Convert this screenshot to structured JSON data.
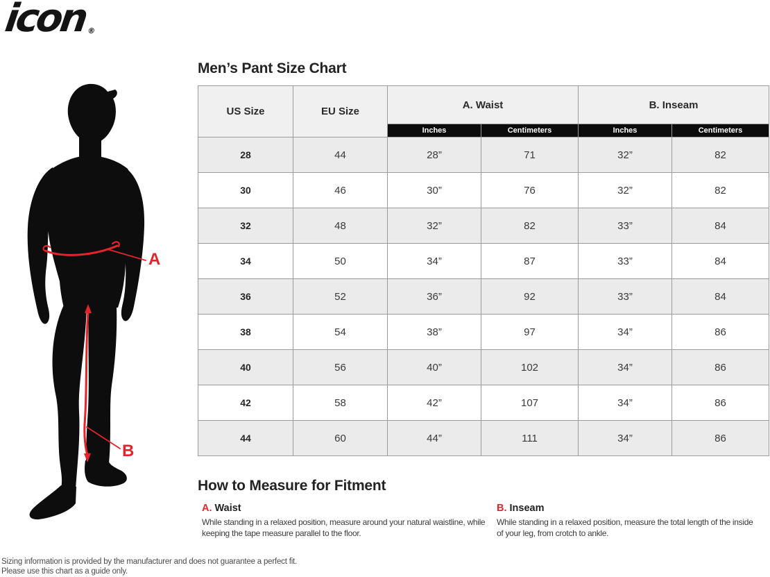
{
  "brand": {
    "logo_text": "icon",
    "registered_mark": "®"
  },
  "diagram": {
    "label_a": "A",
    "label_b": "B"
  },
  "table": {
    "title": "Men’s Pant Size Chart",
    "headers": {
      "us": "US Size",
      "eu": "EU Size",
      "waist": "A. Waist",
      "inseam": "B. Inseam",
      "inches": "Inches",
      "centimeters": "Centimeters"
    },
    "rows": [
      {
        "us": "28",
        "eu": "44",
        "waist_in": "28”",
        "waist_cm": "71",
        "inseam_in": "32”",
        "inseam_cm": "82"
      },
      {
        "us": "30",
        "eu": "46",
        "waist_in": "30”",
        "waist_cm": "76",
        "inseam_in": "32”",
        "inseam_cm": "82"
      },
      {
        "us": "32",
        "eu": "48",
        "waist_in": "32”",
        "waist_cm": "82",
        "inseam_in": "33”",
        "inseam_cm": "84"
      },
      {
        "us": "34",
        "eu": "50",
        "waist_in": "34”",
        "waist_cm": "87",
        "inseam_in": "33”",
        "inseam_cm": "84"
      },
      {
        "us": "36",
        "eu": "52",
        "waist_in": "36”",
        "waist_cm": "92",
        "inseam_in": "33”",
        "inseam_cm": "84"
      },
      {
        "us": "38",
        "eu": "54",
        "waist_in": "38”",
        "waist_cm": "97",
        "inseam_in": "34”",
        "inseam_cm": "86"
      },
      {
        "us": "40",
        "eu": "56",
        "waist_in": "40”",
        "waist_cm": "102",
        "inseam_in": "34”",
        "inseam_cm": "86"
      },
      {
        "us": "42",
        "eu": "58",
        "waist_in": "42”",
        "waist_cm": "107",
        "inseam_in": "34”",
        "inseam_cm": "86"
      },
      {
        "us": "44",
        "eu": "60",
        "waist_in": "44”",
        "waist_cm": "111",
        "inseam_in": "34”",
        "inseam_cm": "86"
      }
    ]
  },
  "chart_data": {
    "type": "table",
    "title": "Men’s Pant Size Chart",
    "columns": [
      "US Size",
      "EU Size",
      "A. Waist Inches",
      "A. Waist Centimeters",
      "B. Inseam Inches",
      "B. Inseam Centimeters"
    ],
    "rows": [
      [
        "28",
        "44",
        "28”",
        "71",
        "32”",
        "82"
      ],
      [
        "30",
        "46",
        "30”",
        "76",
        "32”",
        "82"
      ],
      [
        "32",
        "48",
        "32”",
        "82",
        "33”",
        "84"
      ],
      [
        "34",
        "50",
        "34”",
        "87",
        "33”",
        "84"
      ],
      [
        "36",
        "52",
        "36”",
        "92",
        "33”",
        "84"
      ],
      [
        "38",
        "54",
        "38”",
        "97",
        "34”",
        "86"
      ],
      [
        "40",
        "56",
        "40”",
        "102",
        "34”",
        "86"
      ],
      [
        "42",
        "58",
        "42”",
        "107",
        "34”",
        "86"
      ],
      [
        "44",
        "60",
        "44”",
        "111",
        "34”",
        "86"
      ]
    ]
  },
  "how_to_measure": {
    "title": "How to Measure for Fitment",
    "sections": [
      {
        "letter": "A.",
        "name": "Waist",
        "text": "While standing in a relaxed position, measure around your natural waistline, while keeping the tape measure parallel to the floor."
      },
      {
        "letter": "B.",
        "name": "Inseam",
        "text": "While standing in a relaxed position, measure the total length of the inside of your leg, from crotch to ankle."
      }
    ]
  },
  "disclaimer": {
    "line1": "Sizing information is provided by the manufacturer and does not guarantee a perfect fit.",
    "line2": "Please use this chart as a guide only."
  },
  "colors": {
    "accent_red": "#e3242b",
    "table_border": "#9b9b9b",
    "row_stripe": "#ebebeb",
    "header_bg": "#f0f0f0",
    "subheader_bg": "#0c0c0c",
    "silhouette": "#0d0d0d"
  }
}
